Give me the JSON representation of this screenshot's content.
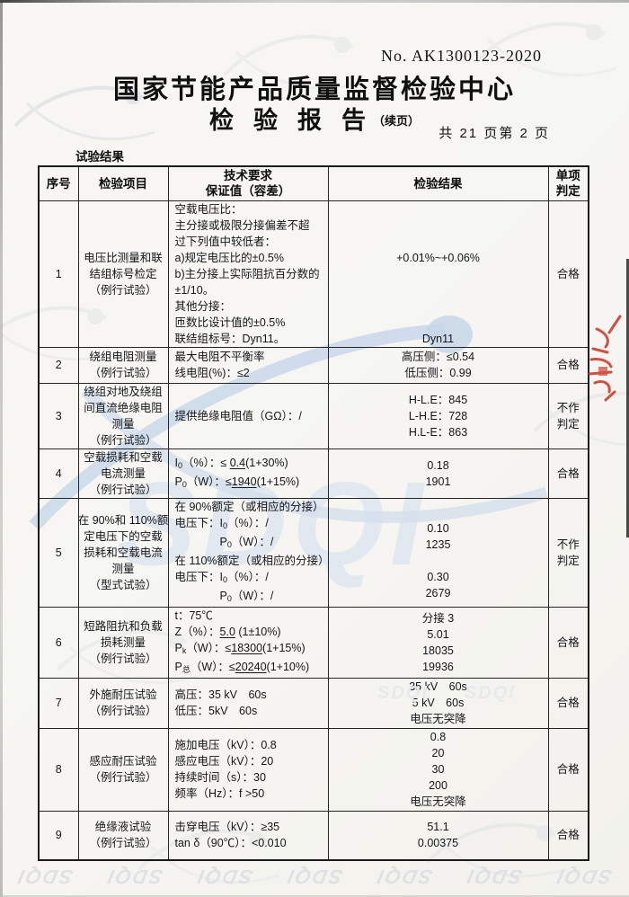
{
  "header": {
    "report_no": "No. AK1300123-2020",
    "org_title": "国家节能产品质量监督检验中心",
    "report_title": "检验报告",
    "report_title_suffix": "（续页）",
    "page_info": "共 21 页第 2 页",
    "section_label": "试验结果"
  },
  "watermark": {
    "brand": "SDQI",
    "blue": "#b9cde6",
    "gray": "#e3e4e7",
    "stamp_red": "#c93b2e"
  },
  "table": {
    "headers": [
      [
        "序号"
      ],
      [
        "检验项目"
      ],
      [
        "技术要求",
        "保证值（容差）"
      ],
      [
        "检验结果"
      ],
      [
        "单项",
        "判定"
      ]
    ],
    "rows": [
      {
        "no": "1",
        "item": [
          "电压比测量和联",
          "结组标号检定",
          "（例行试验）"
        ],
        "tech": [
          [
            {
              "t": "空载电压比："
            }
          ],
          [
            {
              "t": "主分接或极限分接偏差不超"
            }
          ],
          [
            {
              "t": "过下列值中较低者："
            }
          ],
          [
            {
              "t": "a)规定电压比的±0.5%"
            }
          ],
          [
            {
              "t": "b)主分接上实际阻抗百分数的"
            }
          ],
          [
            {
              "t": "±1/10。"
            }
          ],
          [
            {
              "t": "其他分接："
            }
          ],
          [
            {
              "t": "匝数比设计值的±0.5%"
            }
          ],
          [
            {
              "t": "联结组标号：Dyn11。"
            }
          ]
        ],
        "result": [
          "",
          "",
          "",
          "+0.01%~+0.06%",
          "",
          "",
          "",
          "",
          "Dyn11"
        ],
        "verdict": [
          "合格"
        ]
      },
      {
        "no": "2",
        "item": [
          "绕组电阻测量",
          "（例行试验）"
        ],
        "tech": [
          [
            {
              "t": "最大电阻不平衡率"
            }
          ],
          [
            {
              "t": "线电阻(%)：≤2"
            }
          ]
        ],
        "result": [
          "高压侧：≤0.54",
          "低压侧：0.99"
        ],
        "verdict": [
          "合格"
        ]
      },
      {
        "no": "3",
        "item": [
          "绕组对地及绕组",
          "间直流绝缘电阻",
          "测量",
          "（例行试验）"
        ],
        "tech": [
          [
            {
              "t": "提供绝缘电阻值（GΩ）：/"
            }
          ]
        ],
        "result": [
          "H-L.E：845",
          "L-H.E：728",
          "H.L-E：863"
        ],
        "verdict": [
          "不作",
          "判定"
        ]
      },
      {
        "no": "4",
        "item": [
          "空载损耗和空载",
          "电流测量",
          "（例行试验）"
        ],
        "tech": [
          [
            {
              "t": "I"
            },
            {
              "t": "0",
              "sub": true
            },
            {
              "t": "（%）：≤ "
            },
            {
              "t": "0.4",
              "u": true
            },
            {
              "t": "(1+30%)"
            }
          ],
          [
            {
              "t": "P"
            },
            {
              "t": "0",
              "sub": true
            },
            {
              "t": "（W）：≤"
            },
            {
              "t": "1940",
              "u": true
            },
            {
              "t": "(1+15%)"
            }
          ]
        ],
        "result": [
          "0.18",
          "1901"
        ],
        "verdict": [
          "合格"
        ]
      },
      {
        "no": "5",
        "item": [
          "在 90%和 110%额",
          "定电压下的空载",
          "损耗和空载电流",
          "测量",
          "（型式试验）"
        ],
        "tech": [
          [
            {
              "t": "在 90%额定（或相应的分接）"
            }
          ],
          [
            {
              "t": "电压下：I"
            },
            {
              "t": "0",
              "sub": true
            },
            {
              "t": "（%）：/"
            }
          ],
          [
            {
              "t": "　　　　P"
            },
            {
              "t": "0",
              "sub": true
            },
            {
              "t": "（W）：/"
            }
          ],
          [
            {
              "t": "在 110%额定（或相应的分接）"
            }
          ],
          [
            {
              "t": "电压下：I"
            },
            {
              "t": "0",
              "sub": true
            },
            {
              "t": "（%）：/"
            }
          ],
          [
            {
              "t": "　　　　P"
            },
            {
              "t": "0",
              "sub": true
            },
            {
              "t": "（W）：/"
            }
          ]
        ],
        "result": [
          "",
          "0.10",
          "1235",
          "",
          "0.30",
          "2679"
        ],
        "verdict": [
          "不作",
          "判定"
        ]
      },
      {
        "no": "6",
        "item": [
          "短路阻抗和负载",
          "损耗测量",
          "（例行试验）"
        ],
        "tech": [
          [
            {
              "t": "t：75℃"
            }
          ],
          [
            {
              "t": "Z（%）："
            },
            {
              "t": "5.0",
              "u": true
            },
            {
              "t": " (1±10%)"
            }
          ],
          [
            {
              "t": "P"
            },
            {
              "t": "k",
              "sub": true
            },
            {
              "t": "（W）：≤"
            },
            {
              "t": "18300",
              "u": true
            },
            {
              "t": "(1+15%)"
            }
          ],
          [
            {
              "t": "P"
            },
            {
              "t": "总",
              "sub": true
            },
            {
              "t": "（W）：≤"
            },
            {
              "t": "20240",
              "u": true
            },
            {
              "t": "(1+10%)"
            }
          ]
        ],
        "result": [
          "分接 3",
          "5.01",
          "18035",
          "19936"
        ],
        "verdict": [
          "合格"
        ]
      },
      {
        "no": "7",
        "item": [
          "外施耐压试验",
          "（例行试验）"
        ],
        "tech": [
          [
            {
              "t": "高压：35 kV　60s"
            }
          ],
          [
            {
              "t": "低压：5kV　60s"
            }
          ]
        ],
        "result": [
          "35 kV　60s",
          "5 kV　60s",
          "电压无突降"
        ],
        "verdict": [
          "合格"
        ]
      },
      {
        "no": "8",
        "item": [
          "感应耐压试验",
          "（例行试验）"
        ],
        "tech": [
          [
            {
              "t": "施加电压（kV）：0.8"
            }
          ],
          [
            {
              "t": "感应电压（kV）：20"
            }
          ],
          [
            {
              "t": "持续时间（s）：30"
            }
          ],
          [
            {
              "t": "频率（Hz）：f >50"
            }
          ]
        ],
        "result": [
          "0.8",
          "20",
          "30",
          "200",
          "电压无突降"
        ],
        "verdict": [
          "合格"
        ]
      },
      {
        "no": "9",
        "item": [
          "绝缘液试验",
          "（例行试验）"
        ],
        "tech": [
          [
            {
              "t": "击穿电压（kV）：≥35"
            }
          ],
          [
            {
              "t": "tan δ（90℃）：<0.010"
            }
          ]
        ],
        "result": [
          "51.1",
          "0.00375"
        ],
        "verdict": [
          "合格"
        ]
      }
    ]
  }
}
